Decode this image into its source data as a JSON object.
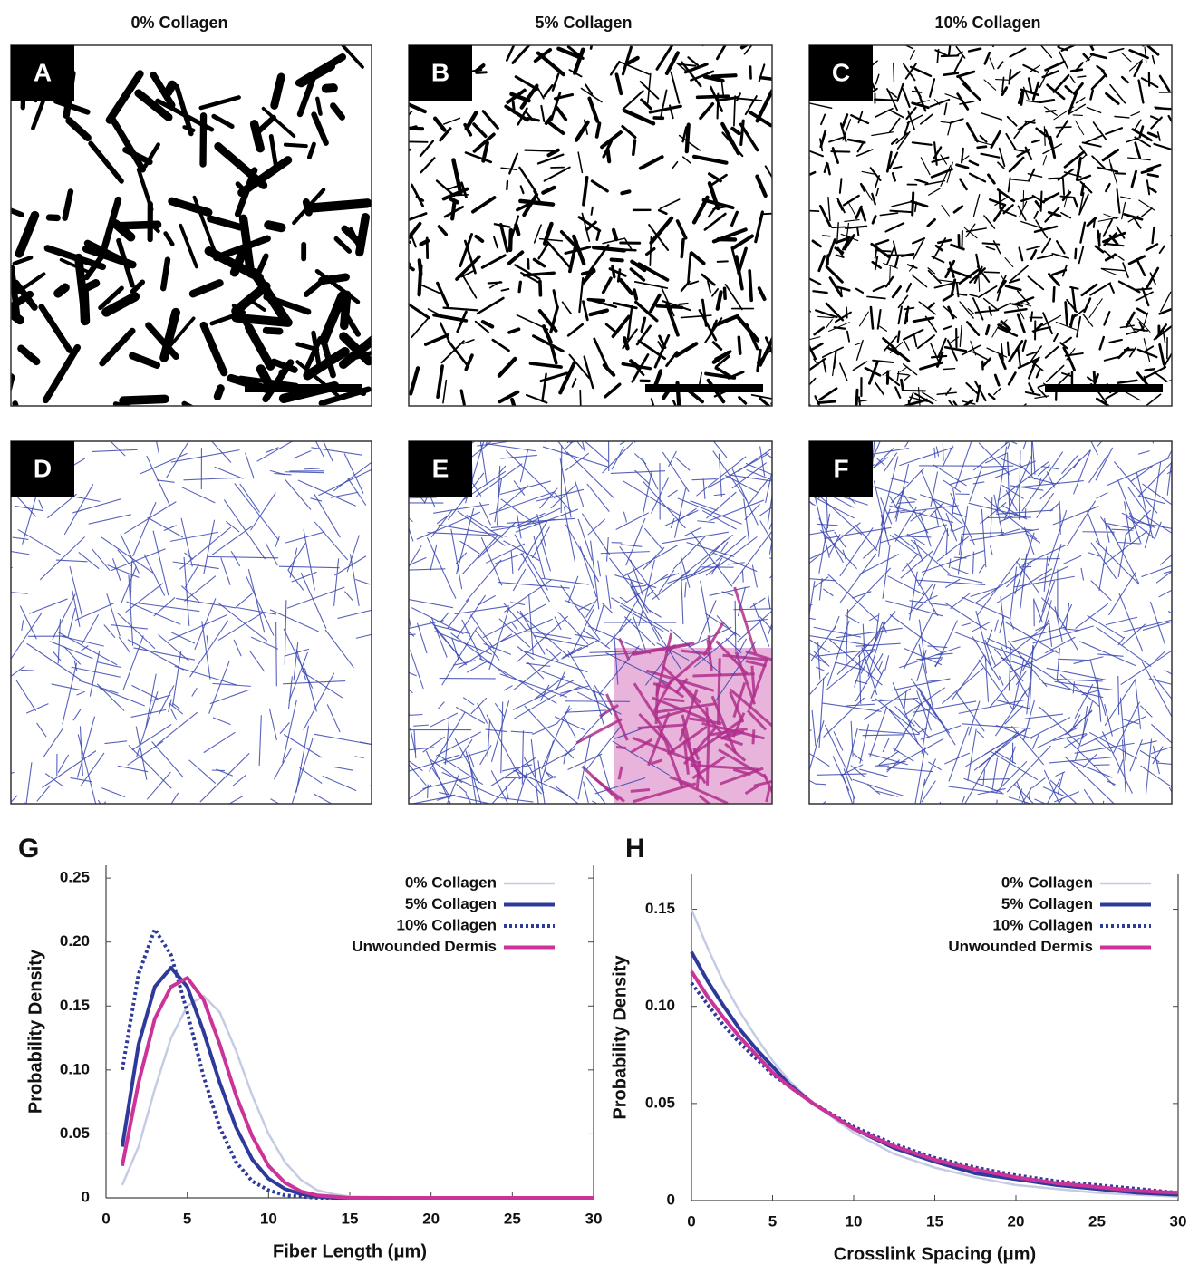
{
  "panels": {
    "column_titles": [
      "0% Collagen",
      "5% Collagen",
      "10% Collagen"
    ],
    "labels": [
      "A",
      "B",
      "C",
      "D",
      "E",
      "F"
    ]
  },
  "chart_data": [
    {
      "type": "line",
      "panel_label": "G",
      "xlabel": "Fiber Length (μm)",
      "ylabel": "Probability Density",
      "x": [
        1,
        2,
        3,
        4,
        5,
        6,
        7,
        8,
        9,
        10,
        11,
        12,
        13,
        14,
        15,
        20,
        25,
        30
      ],
      "series": [
        {
          "name": "0% Collagen",
          "color": "#c5cbe3",
          "line_style": "solid",
          "values": [
            0.01,
            0.04,
            0.085,
            0.125,
            0.15,
            0.158,
            0.145,
            0.115,
            0.08,
            0.05,
            0.028,
            0.014,
            0.006,
            0.003,
            0.001,
            0,
            0,
            0
          ]
        },
        {
          "name": "5% Collagen",
          "color": "#2e3a9a",
          "line_style": "solid",
          "values": [
            0.04,
            0.12,
            0.165,
            0.18,
            0.165,
            0.13,
            0.09,
            0.055,
            0.03,
            0.015,
            0.007,
            0.003,
            0.001,
            0,
            0,
            0,
            0,
            0
          ]
        },
        {
          "name": "10% Collagen",
          "color": "#2e3a9a",
          "line_style": "dotted",
          "values": [
            0.1,
            0.175,
            0.21,
            0.19,
            0.145,
            0.095,
            0.055,
            0.028,
            0.013,
            0.006,
            0.002,
            0.001,
            0,
            0,
            0,
            0,
            0,
            0
          ]
        },
        {
          "name": "Unwounded Dermis",
          "color": "#cc3399",
          "line_style": "solid",
          "values": [
            0.025,
            0.09,
            0.14,
            0.165,
            0.172,
            0.155,
            0.12,
            0.08,
            0.048,
            0.025,
            0.012,
            0.005,
            0.002,
            0.001,
            0,
            0,
            0,
            0
          ]
        }
      ],
      "xlim": [
        0,
        30
      ],
      "ylim": [
        0,
        0.26
      ],
      "xticks": [
        0,
        5,
        10,
        15,
        20,
        25,
        30
      ],
      "yticks": [
        0,
        0.05,
        {
          "value": 0.1,
          "label": "0.10"
        },
        0.15,
        {
          "value": 0.2,
          "label": "0.20"
        },
        0.25
      ],
      "legend": "upper right"
    },
    {
      "type": "line",
      "panel_label": "H",
      "xlabel": "Crosslink Spacing (μm)",
      "ylabel": "Probability Density",
      "x": [
        0,
        1,
        2,
        3,
        4,
        5,
        6,
        7.5,
        10,
        12.5,
        15,
        17.5,
        20,
        22.5,
        25,
        27.5,
        30
      ],
      "series": [
        {
          "name": "0% Collagen",
          "color": "#c5cbe3",
          "line_style": "solid",
          "values": [
            0.15,
            0.13,
            0.112,
            0.097,
            0.084,
            0.072,
            0.062,
            0.05,
            0.035,
            0.024,
            0.017,
            0.012,
            0.008,
            0.006,
            0.004,
            0.003,
            0.002
          ]
        },
        {
          "name": "5% Collagen",
          "color": "#2e3a9a",
          "line_style": "solid",
          "values": [
            0.128,
            0.113,
            0.1,
            0.088,
            0.078,
            0.069,
            0.06,
            0.05,
            0.037,
            0.027,
            0.02,
            0.014,
            0.011,
            0.008,
            0.006,
            0.004,
            0.003
          ]
        },
        {
          "name": "10% Collagen",
          "color": "#2e3a9a",
          "line_style": "dotted",
          "values": [
            0.112,
            0.101,
            0.09,
            0.081,
            0.073,
            0.065,
            0.059,
            0.05,
            0.038,
            0.029,
            0.022,
            0.017,
            0.013,
            0.01,
            0.008,
            0.006,
            0.004
          ]
        },
        {
          "name": "Unwounded Dermis",
          "color": "#cc3399",
          "line_style": "solid",
          "values": [
            0.118,
            0.105,
            0.094,
            0.084,
            0.075,
            0.066,
            0.059,
            0.05,
            0.037,
            0.028,
            0.021,
            0.016,
            0.012,
            0.009,
            0.007,
            0.005,
            0.004
          ]
        }
      ],
      "xlim": [
        0,
        30
      ],
      "ylim": [
        0,
        0.168
      ],
      "xticks": [
        0,
        5,
        10,
        15,
        20,
        25,
        30
      ],
      "yticks": [
        0,
        0.05,
        {
          "value": 0.1,
          "label": "0.10"
        },
        0.15
      ],
      "legend": "upper right"
    }
  ]
}
